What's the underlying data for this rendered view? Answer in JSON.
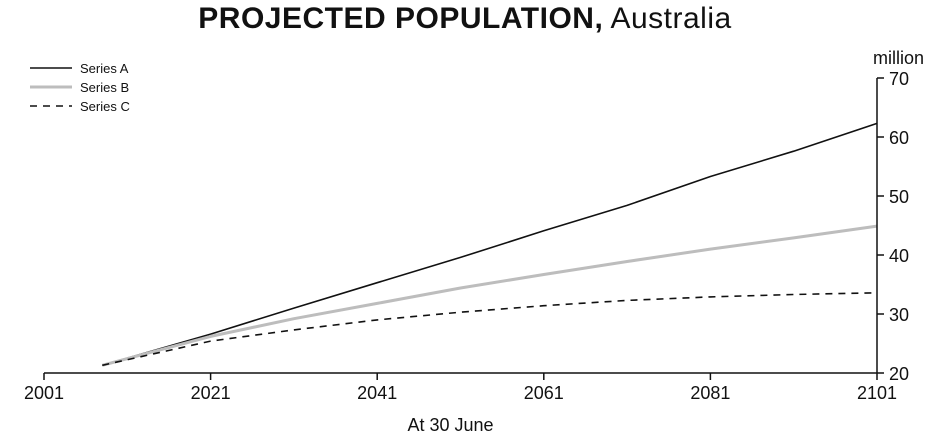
{
  "title": {
    "main": "PROJECTED POPULATION,",
    "sub": " Australia"
  },
  "colors": {
    "series_a": "#111111",
    "series_b": "#bdbdbd",
    "series_c": "#111111"
  },
  "chart_data": {
    "type": "line",
    "title": "PROJECTED POPULATION, Australia",
    "xlabel": "At 30 June",
    "ylabel": "million",
    "xlim": [
      2001,
      2101
    ],
    "ylim": [
      20,
      70
    ],
    "xticks": [
      2001,
      2021,
      2041,
      2061,
      2081,
      2101
    ],
    "yticks": [
      20,
      30,
      40,
      50,
      60,
      70
    ],
    "grid": false,
    "legend": "top-left",
    "series": [
      {
        "name": "Series A",
        "style": "solid",
        "color": "#111111",
        "x": [
          2008,
          2021,
          2031,
          2041,
          2051,
          2061,
          2071,
          2081,
          2091,
          2101
        ],
        "y": [
          21.3,
          26.6,
          31.0,
          35.3,
          39.6,
          44.1,
          48.4,
          53.3,
          57.6,
          62.3
        ]
      },
      {
        "name": "Series B",
        "style": "solid",
        "color": "#bdbdbd",
        "x": [
          2008,
          2021,
          2031,
          2041,
          2051,
          2061,
          2071,
          2081,
          2091,
          2101
        ],
        "y": [
          21.3,
          26.2,
          29.2,
          31.8,
          34.4,
          36.7,
          38.9,
          41.0,
          42.9,
          44.9
        ]
      },
      {
        "name": "Series C",
        "style": "dashed",
        "color": "#111111",
        "x": [
          2008,
          2021,
          2031,
          2041,
          2051,
          2061,
          2071,
          2081,
          2091,
          2101
        ],
        "y": [
          21.3,
          25.4,
          27.3,
          29.0,
          30.3,
          31.4,
          32.3,
          32.9,
          33.3,
          33.6
        ]
      }
    ]
  }
}
